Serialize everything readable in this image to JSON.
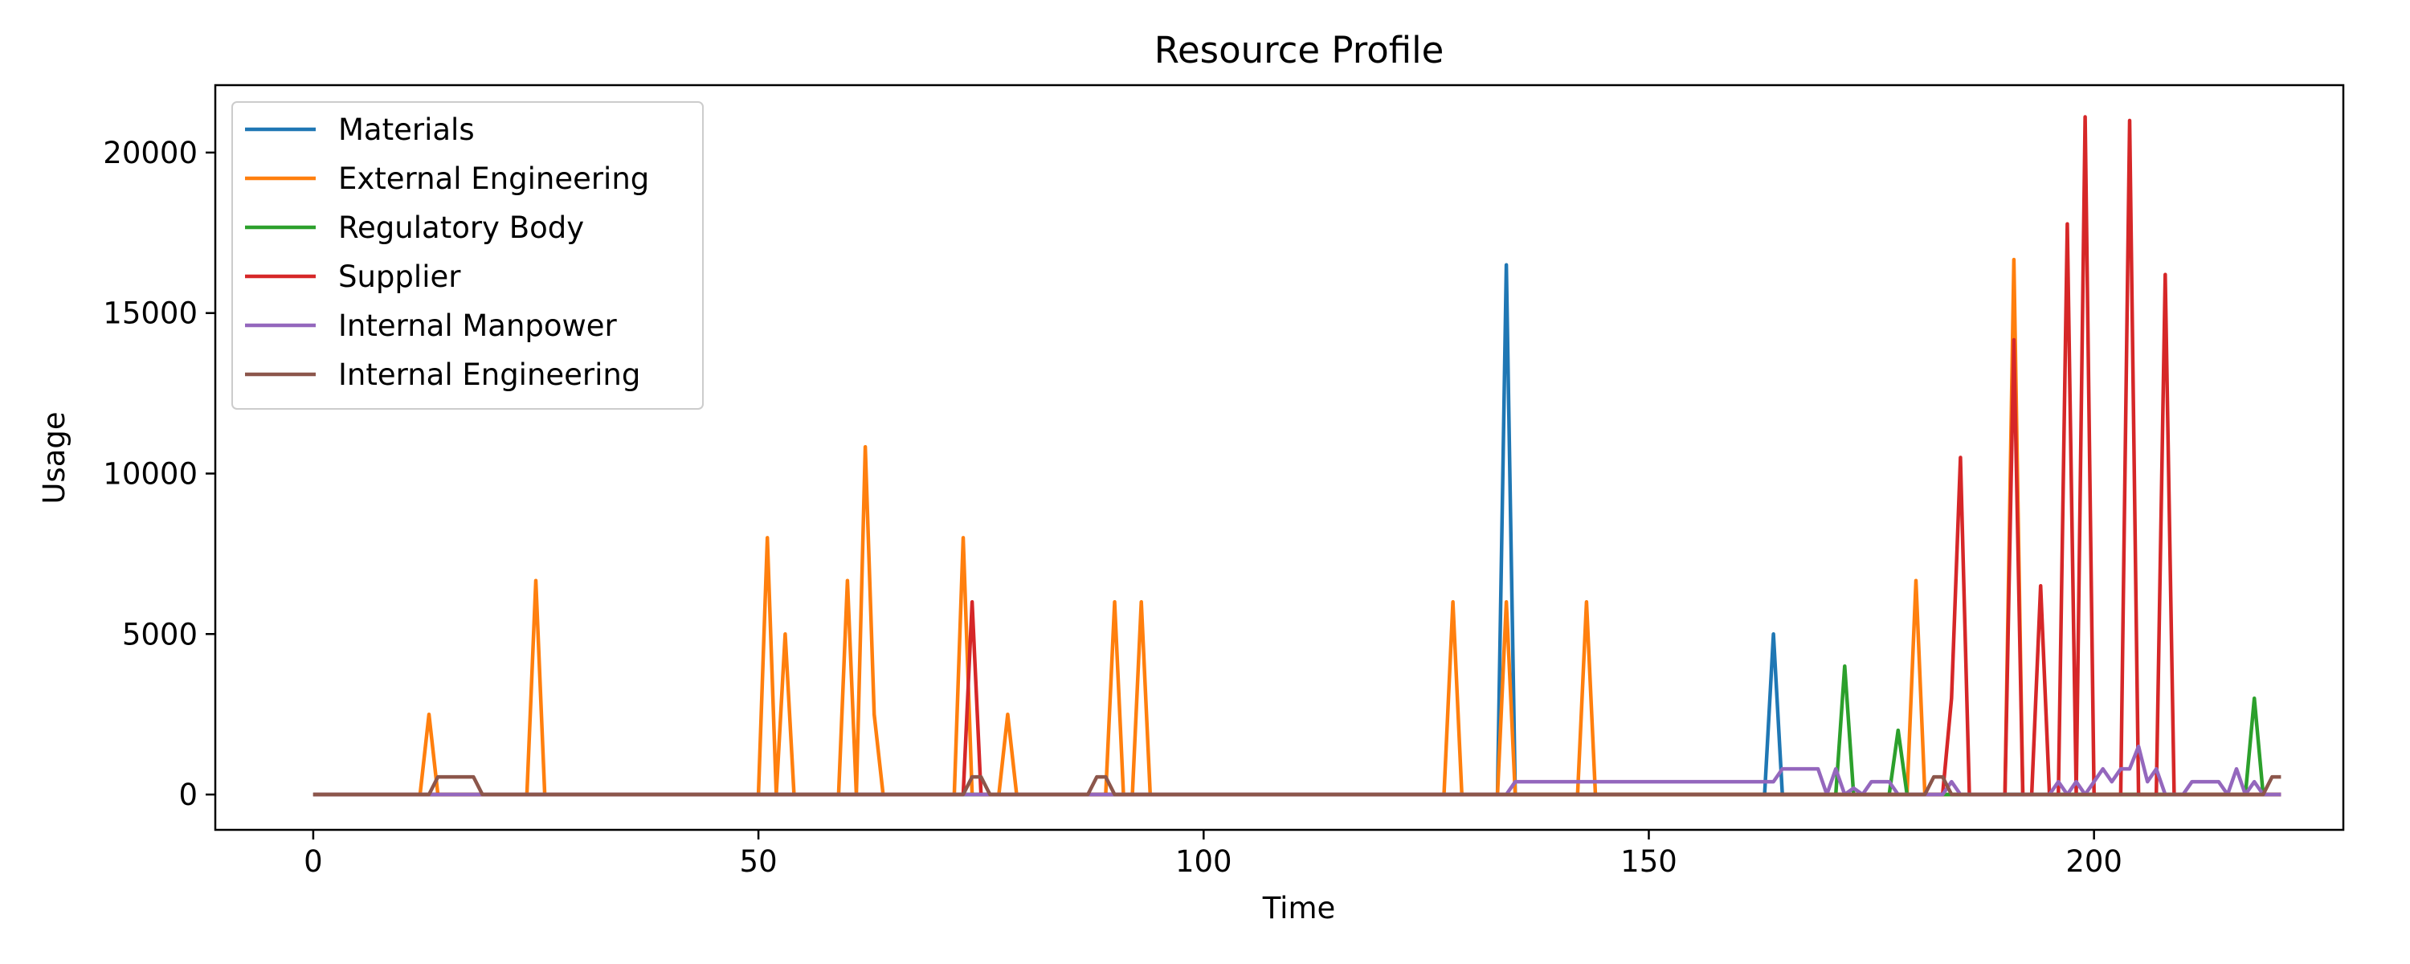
{
  "chart_data": {
    "type": "line",
    "title": "Resource Profile",
    "xlabel": "Time",
    "ylabel": "Usage",
    "xlim": [
      -11,
      228
    ],
    "ylim": [
      -1100,
      22100
    ],
    "xticks": [
      0,
      50,
      100,
      150,
      200
    ],
    "yticks": [
      0,
      5000,
      10000,
      15000,
      20000
    ],
    "grid": false,
    "legend_location": "upper left",
    "series": [
      {
        "name": "Materials",
        "color": "#1f77b4",
        "x": [
          0,
          133,
          134,
          135,
          163,
          164,
          165,
          221
        ],
        "y": [
          0,
          0,
          16500,
          0,
          0,
          5000,
          0,
          0
        ]
      },
      {
        "name": "External Engineering",
        "color": "#ff7f0e",
        "x": [
          0,
          12,
          13,
          14,
          24,
          25,
          26,
          50,
          51,
          52,
          53,
          54,
          59,
          60,
          61,
          62,
          63,
          64,
          72,
          73,
          74,
          77,
          78,
          79,
          89,
          90,
          91,
          92,
          93,
          94,
          127,
          128,
          129,
          133,
          134,
          135,
          142,
          143,
          144,
          179,
          180,
          181,
          190,
          191,
          192,
          221
        ],
        "y": [
          0,
          0,
          2500,
          0,
          0,
          6667,
          0,
          0,
          8000,
          0,
          5000,
          0,
          0,
          6667,
          0,
          10833,
          2500,
          0,
          0,
          8000,
          0,
          0,
          2500,
          0,
          0,
          6000,
          0,
          0,
          6000,
          0,
          0,
          6000,
          0,
          0,
          6000,
          0,
          0,
          6000,
          0,
          0,
          6667,
          0,
          0,
          16667,
          0,
          0
        ]
      },
      {
        "name": "Regulatory Body",
        "color": "#2ca02c",
        "x": [
          0,
          171,
          172,
          173,
          177,
          178,
          179,
          217,
          218,
          219,
          221
        ],
        "y": [
          0,
          0,
          4000,
          0,
          0,
          2000,
          0,
          0,
          3000,
          0,
          0
        ]
      },
      {
        "name": "Supplier",
        "color": "#d62728",
        "x": [
          0,
          73,
          74,
          75,
          183,
          184,
          185,
          186,
          190,
          191,
          192,
          193,
          194,
          195,
          196,
          197,
          198,
          199,
          200,
          203,
          204,
          205,
          207,
          208,
          209,
          221
        ],
        "y": [
          0,
          0,
          6000,
          0,
          0,
          3000,
          10500,
          0,
          0,
          14167,
          0,
          0,
          6500,
          0,
          0,
          17778,
          0,
          21111,
          0,
          0,
          21000,
          0,
          0,
          16200,
          0,
          0
        ]
      },
      {
        "name": "Internal Manpower",
        "color": "#9467bd",
        "x": [
          0,
          133,
          134,
          135,
          163,
          164,
          165,
          169,
          170,
          171,
          172,
          173,
          174,
          175,
          177,
          178,
          183,
          184,
          185,
          186,
          195,
          196,
          197,
          198,
          199,
          200,
          201,
          202,
          203,
          204,
          205,
          206,
          207,
          208,
          209,
          210,
          211,
          212,
          214,
          215,
          216,
          217,
          218,
          219,
          221
        ],
        "y": [
          0,
          0,
          0,
          400,
          400,
          400,
          800,
          800,
          0,
          800,
          0,
          200,
          0,
          400,
          400,
          0,
          0,
          400,
          0,
          0,
          0,
          400,
          0,
          400,
          0,
          400,
          800,
          400,
          800,
          800,
          1500,
          400,
          800,
          0,
          0,
          0,
          400,
          400,
          400,
          0,
          800,
          0,
          400,
          0,
          0
        ]
      },
      {
        "name": "Internal Engineering",
        "color": "#8c564b",
        "x": [
          0,
          13,
          14,
          18,
          19,
          73,
          74,
          75,
          76,
          87,
          88,
          89,
          90,
          181,
          182,
          183,
          184,
          219,
          220,
          221
        ],
        "y": [
          0,
          0,
          550,
          550,
          0,
          0,
          550,
          550,
          0,
          0,
          550,
          550,
          0,
          0,
          550,
          550,
          0,
          0,
          550,
          550
        ]
      }
    ]
  }
}
